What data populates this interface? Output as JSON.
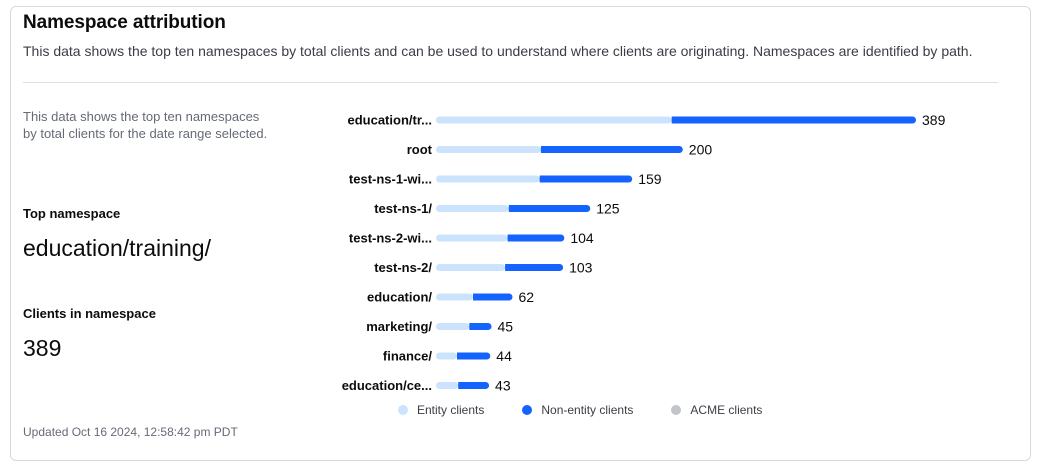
{
  "card": {
    "title": "Namespace attribution",
    "description": "This data shows the top ten namespaces by total clients and can be used to understand where clients are originating. Namespaces are identified by path."
  },
  "sidebar": {
    "description": "This data shows the top ten namespaces by total clients for the date range selected.",
    "top_namespace_label": "Top namespace",
    "top_namespace_value": "education/training/",
    "clients_label": "Clients in namespace",
    "clients_value": "389"
  },
  "footer": {
    "updated": "Updated Oct 16 2024, 12:58:42 pm PDT"
  },
  "colors": {
    "entity": "#cce3fe",
    "non_entity": "#1563ff",
    "acme": "#c2c5cb"
  },
  "chart_data": {
    "type": "bar",
    "orientation": "horizontal",
    "stacked": true,
    "categories": [
      "education/tr...",
      "root",
      "test-ns-1-wi...",
      "test-ns-1/",
      "test-ns-2-wi...",
      "test-ns-2/",
      "education/",
      "marketing/",
      "finance/",
      "education/ce..."
    ],
    "totals": [
      389,
      200,
      159,
      125,
      104,
      103,
      62,
      45,
      44,
      43
    ],
    "series": [
      {
        "name": "Entity clients",
        "color": "#cce3fe",
        "values": [
          191,
          85,
          84,
          59,
          58,
          56,
          30,
          27,
          17,
          18
        ]
      },
      {
        "name": "Non-entity clients",
        "color": "#1563ff",
        "values": [
          198,
          115,
          75,
          66,
          46,
          47,
          32,
          18,
          27,
          25
        ]
      },
      {
        "name": "ACME clients",
        "color": "#c2c5cb",
        "values": [
          0,
          0,
          0,
          0,
          0,
          0,
          0,
          0,
          0,
          0
        ]
      }
    ],
    "xlim": [
      0,
      389
    ],
    "legend_position": "bottom"
  }
}
